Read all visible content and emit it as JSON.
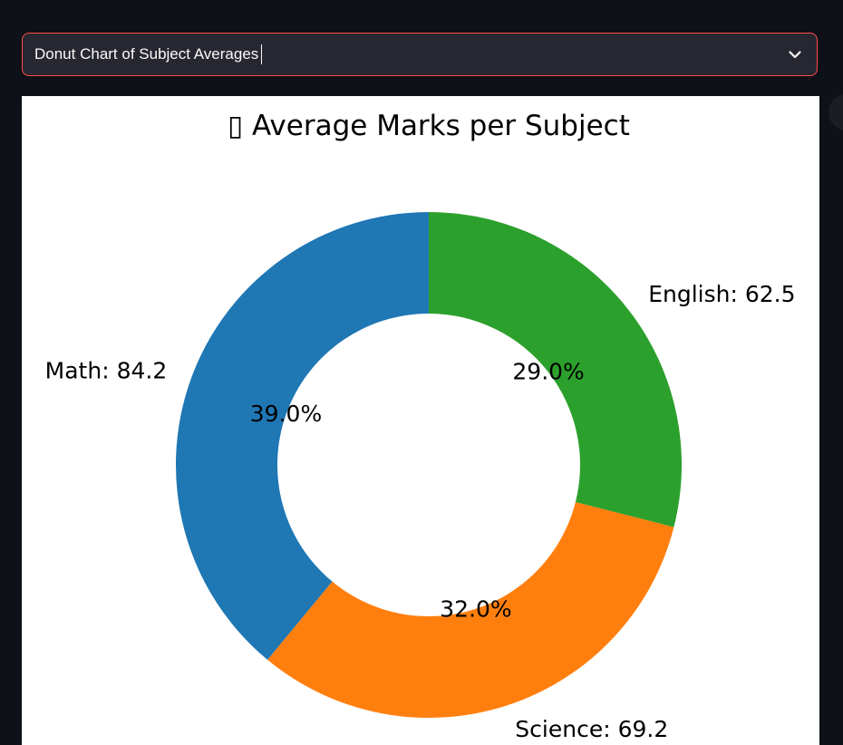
{
  "select": {
    "value": "Donut Chart of Subject Averages",
    "icon": "chevron-down-icon"
  },
  "chart_data": {
    "type": "pie",
    "variant": "donut",
    "title": "▯ Average Marks per Subject",
    "start_angle_deg": 90,
    "direction": "counterclockwise",
    "slices": [
      {
        "label": "Math",
        "value": 84.2,
        "label_text": "Math: 84.2",
        "pct_text": "39.0%",
        "color": "#1f77b4"
      },
      {
        "label": "Science",
        "value": 69.2,
        "label_text": "Science: 69.2",
        "pct_text": "32.0%",
        "color": "#ff7f0e"
      },
      {
        "label": "English",
        "value": 62.5,
        "label_text": "English: 62.5",
        "pct_text": "29.0%",
        "color": "#2ca02c"
      }
    ]
  }
}
